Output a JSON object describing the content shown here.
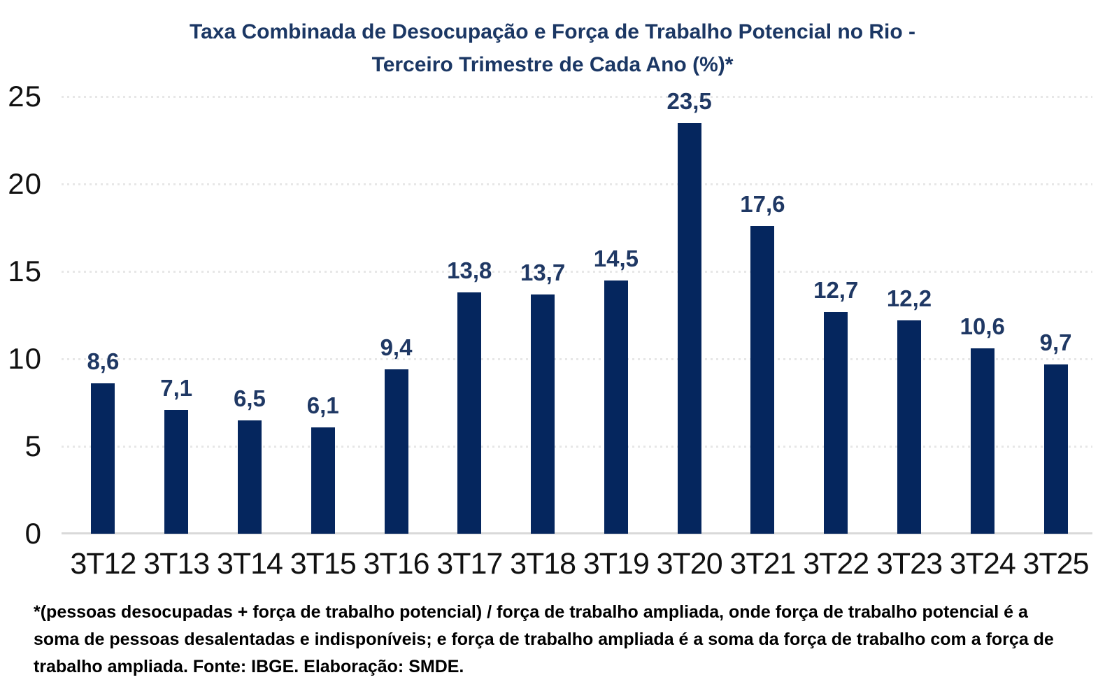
{
  "chart_data": {
    "type": "bar",
    "title_line1": "Taxa Combinada de Desocupação e Força de Trabalho Potencial no Rio -",
    "title_line2": "Terceiro Trimestre de Cada Ano (%)*",
    "categories": [
      "3T12",
      "3T13",
      "3T14",
      "3T15",
      "3T16",
      "3T17",
      "3T18",
      "3T19",
      "3T20",
      "3T21",
      "3T22",
      "3T23",
      "3T24",
      "3T25"
    ],
    "values": [
      8.6,
      7.1,
      6.5,
      6.1,
      9.4,
      13.8,
      13.7,
      14.5,
      23.5,
      17.6,
      12.7,
      12.2,
      10.6,
      9.7
    ],
    "value_labels": [
      "8,6",
      "7,1",
      "6,5",
      "6,1",
      "9,4",
      "13,8",
      "13,7",
      "14,5",
      "23,5",
      "17,6",
      "12,7",
      "12,2",
      "10,6",
      "9,7"
    ],
    "yticks": [
      0,
      5,
      10,
      15,
      20,
      25
    ],
    "ylim": [
      0,
      25
    ],
    "xlabel": "",
    "ylabel": "",
    "legend": "none",
    "grid": "horizontal-dotted",
    "bar_color": "#05265e",
    "label_color": "#1f3864",
    "title_color": "#1b3764",
    "axis_line_color": "#d9d9d9"
  },
  "footnote": {
    "text": "*(pessoas desocupadas + força de trabalho potencial) / força de trabalho ampliada, onde força de trabalho potencial é a soma de pessoas desalentadas e indisponíveis; e força de trabalho ampliada é a soma da força de trabalho com a força de trabalho ampliada. Fonte: IBGE. Elaboração: SMDE."
  }
}
